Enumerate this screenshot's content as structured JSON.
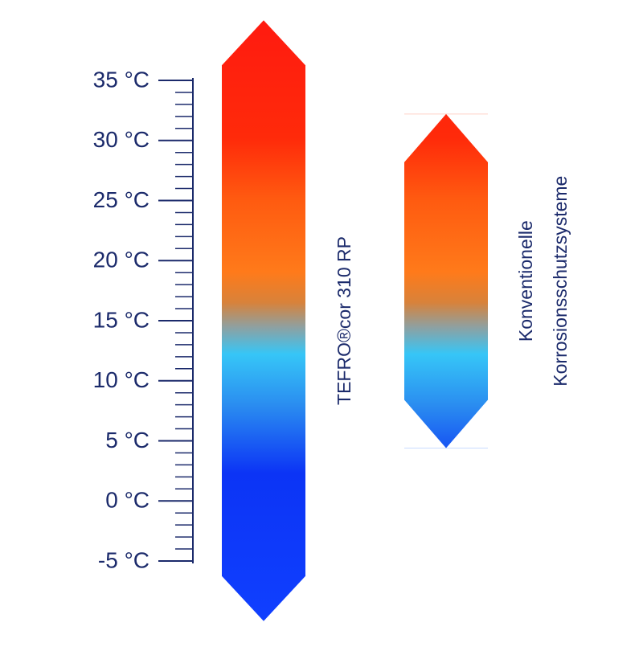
{
  "chart_data": {
    "type": "range",
    "ylim": [
      -5,
      35
    ],
    "yticks": [
      {
        "value": -5,
        "label": "-5 °C"
      },
      {
        "value": 0,
        "label": "0 °C"
      },
      {
        "value": 5,
        "label": "5 °C"
      },
      {
        "value": 10,
        "label": "10 °C"
      },
      {
        "value": 15,
        "label": "15 °C"
      },
      {
        "value": 20,
        "label": "20 °C"
      },
      {
        "value": 25,
        "label": "25 °C"
      },
      {
        "value": 30,
        "label": "30 °C"
      },
      {
        "value": 35,
        "label": "35 °C"
      }
    ],
    "yticks_minor": [
      -4,
      -3,
      -2,
      -1,
      1,
      2,
      3,
      4,
      6,
      7,
      8,
      9,
      11,
      12,
      13,
      14,
      16,
      17,
      18,
      19,
      21,
      22,
      23,
      24,
      26,
      27,
      28,
      29,
      31,
      32,
      33,
      34
    ],
    "series": [
      {
        "labels": [
          "TEFRO®cor 310 RP"
        ],
        "low": -10,
        "high": 40
      },
      {
        "labels": [
          "Konventionelle",
          "Korrosionsschutzsysteme"
        ],
        "low": 4.4,
        "high": 32.2
      }
    ]
  }
}
